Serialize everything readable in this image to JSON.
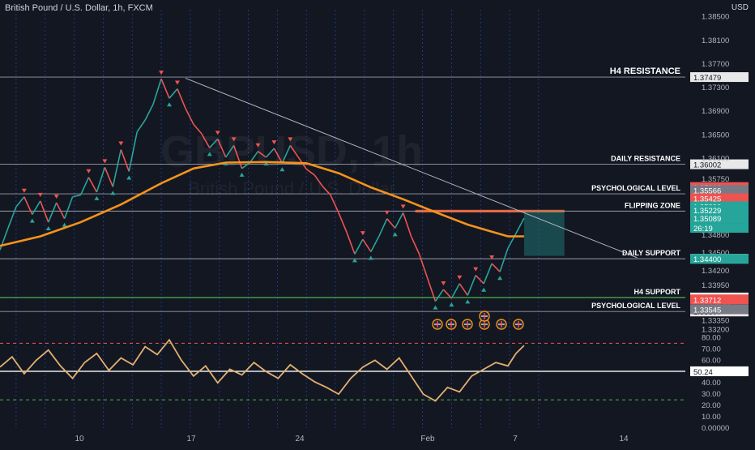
{
  "header": {
    "symbol_title": "British Pound / U.S. Dollar, 1h, FXCM",
    "currency": "USD"
  },
  "watermark": {
    "symbol": "GBPUSD, 1h",
    "name": "British Pound / U.S. Dollar"
  },
  "colors": {
    "background": "#131722",
    "bull": "#26a69a",
    "bear": "#ef5350",
    "ma": "#f7931a",
    "rsi": "#e2b070",
    "grid_vertical": "#2962ff",
    "level_line": "#b2b5be",
    "support_green": "#4caf50"
  },
  "chart_data": [
    {
      "type": "line",
      "title": "British Pound / U.S. Dollar, 1h, FXCM",
      "ylim": [
        1.3318,
        1.3862
      ],
      "yticks": [
        1.385,
        1.381,
        1.377,
        1.373,
        1.369,
        1.365,
        1.361,
        1.3575,
        1.3545,
        1.3515,
        1.348,
        1.345,
        1.342,
        1.3395,
        1.3365,
        1.3335,
        1.332
      ],
      "ytick_labels": [
        "1.38500",
        "1.38100",
        "1.37700",
        "1.37300",
        "1.36900",
        "1.36500",
        "1.36100",
        "1.35750",
        "1.35450",
        "1.35150",
        "1.34800",
        "1.34500",
        "1.34200",
        "1.33950",
        "1.33650",
        "1.33350",
        "1.33200"
      ],
      "xtick_labels": [
        "10",
        "17",
        "24",
        "Feb",
        "7",
        "14"
      ],
      "price_series": [
        {
          "t": 0,
          "v": 1.3455
        },
        {
          "t": 2,
          "v": 1.3492
        },
        {
          "t": 4,
          "v": 1.3528
        },
        {
          "t": 6,
          "v": 1.3545
        },
        {
          "t": 8,
          "v": 1.3515
        },
        {
          "t": 10,
          "v": 1.3538
        },
        {
          "t": 12,
          "v": 1.3502
        },
        {
          "t": 14,
          "v": 1.3535
        },
        {
          "t": 16,
          "v": 1.3508
        },
        {
          "t": 18,
          "v": 1.3545
        },
        {
          "t": 20,
          "v": 1.3548
        },
        {
          "t": 22,
          "v": 1.3578
        },
        {
          "t": 24,
          "v": 1.3553
        },
        {
          "t": 26,
          "v": 1.3595
        },
        {
          "t": 28,
          "v": 1.3562
        },
        {
          "t": 30,
          "v": 1.3625
        },
        {
          "t": 32,
          "v": 1.3588
        },
        {
          "t": 34,
          "v": 1.3655
        },
        {
          "t": 36,
          "v": 1.3675
        },
        {
          "t": 38,
          "v": 1.3702
        },
        {
          "t": 40,
          "v": 1.3745
        },
        {
          "t": 42,
          "v": 1.3712
        },
        {
          "t": 44,
          "v": 1.3728
        },
        {
          "t": 46,
          "v": 1.3695
        },
        {
          "t": 48,
          "v": 1.3668
        },
        {
          "t": 50,
          "v": 1.3652
        },
        {
          "t": 52,
          "v": 1.3628
        },
        {
          "t": 54,
          "v": 1.3643
        },
        {
          "t": 56,
          "v": 1.3612
        },
        {
          "t": 58,
          "v": 1.3632
        },
        {
          "t": 60,
          "v": 1.3593
        },
        {
          "t": 62,
          "v": 1.3603
        },
        {
          "t": 64,
          "v": 1.3622
        },
        {
          "t": 66,
          "v": 1.3612
        },
        {
          "t": 68,
          "v": 1.3627
        },
        {
          "t": 70,
          "v": 1.3602
        },
        {
          "t": 72,
          "v": 1.3632
        },
        {
          "t": 74,
          "v": 1.3612
        },
        {
          "t": 76,
          "v": 1.3592
        },
        {
          "t": 78,
          "v": 1.3582
        },
        {
          "t": 80,
          "v": 1.3563
        },
        {
          "t": 82,
          "v": 1.3548
        },
        {
          "t": 84,
          "v": 1.3518
        },
        {
          "t": 86,
          "v": 1.3485
        },
        {
          "t": 88,
          "v": 1.3448
        },
        {
          "t": 90,
          "v": 1.3473
        },
        {
          "t": 92,
          "v": 1.3452
        },
        {
          "t": 94,
          "v": 1.3478
        },
        {
          "t": 96,
          "v": 1.3508
        },
        {
          "t": 98,
          "v": 1.3492
        },
        {
          "t": 100,
          "v": 1.3518
        },
        {
          "t": 102,
          "v": 1.3478
        },
        {
          "t": 104,
          "v": 1.3448
        },
        {
          "t": 106,
          "v": 1.3408
        },
        {
          "t": 108,
          "v": 1.3368
        },
        {
          "t": 110,
          "v": 1.3388
        },
        {
          "t": 112,
          "v": 1.3373
        },
        {
          "t": 114,
          "v": 1.3398
        },
        {
          "t": 116,
          "v": 1.3378
        },
        {
          "t": 118,
          "v": 1.3412
        },
        {
          "t": 120,
          "v": 1.3398
        },
        {
          "t": 122,
          "v": 1.3432
        },
        {
          "t": 124,
          "v": 1.3418
        },
        {
          "t": 126,
          "v": 1.3458
        },
        {
          "t": 128,
          "v": 1.3483
        },
        {
          "t": 130,
          "v": 1.3509
        }
      ],
      "moving_average": [
        {
          "t": 0,
          "v": 1.3462
        },
        {
          "t": 10,
          "v": 1.3478
        },
        {
          "t": 20,
          "v": 1.3502
        },
        {
          "t": 30,
          "v": 1.3532
        },
        {
          "t": 40,
          "v": 1.3568
        },
        {
          "t": 48,
          "v": 1.3593
        },
        {
          "t": 56,
          "v": 1.3603
        },
        {
          "t": 66,
          "v": 1.3604
        },
        {
          "t": 76,
          "v": 1.3602
        },
        {
          "t": 84,
          "v": 1.3585
        },
        {
          "t": 92,
          "v": 1.3561
        },
        {
          "t": 100,
          "v": 1.3541
        },
        {
          "t": 108,
          "v": 1.3519
        },
        {
          "t": 116,
          "v": 1.3498
        },
        {
          "t": 122,
          "v": 1.3486
        },
        {
          "t": 126,
          "v": 1.3478
        },
        {
          "t": 130,
          "v": 1.3478
        }
      ],
      "trendline": {
        "from": {
          "t": 46,
          "v": 1.3746
        },
        "to": {
          "t": 158,
          "v": 1.3442
        }
      },
      "levels": [
        {
          "name": "H4 RESISTANCE",
          "price": 1.37479,
          "label": "1.37479",
          "style": "solid"
        },
        {
          "name": "DAILY RESISTANCE",
          "price": 1.36002,
          "label": "1.36002",
          "style": "solid"
        },
        {
          "name": "PSYCHOLOGICAL LEVEL",
          "price": 1.35501,
          "label": "1.35501",
          "style": "solid"
        },
        {
          "name": "FLIPPING ZONE",
          "price": 1.35208,
          "label": "1.35208",
          "style": "solid"
        },
        {
          "name": "DAILY SUPPORT",
          "price": 1.34401,
          "label": "1.34401",
          "style": "solid"
        },
        {
          "name": "H4 SUPPORT",
          "price": 1.33745,
          "label": "1.33745",
          "style": "green"
        },
        {
          "name": "PSYCHOLOGICAL LEVEL",
          "price": 1.33507,
          "label": "1.33507",
          "style": "solid"
        }
      ],
      "price_tags": [
        {
          "price": 1.35616,
          "label": "1.35616",
          "color": "#ef5350"
        },
        {
          "price": 1.35566,
          "label": "1.35566",
          "color": "#787b86"
        },
        {
          "price": 1.35425,
          "label": "1.35425",
          "color": "#ef5350"
        },
        {
          "price": 1.3529,
          "label": "1.35290",
          "color": "#26a69a"
        },
        {
          "price": 1.35229,
          "label": "1.35229",
          "color": "#26a69a"
        },
        {
          "price": 1.35089,
          "label": "1.35089",
          "color": "#26a69a"
        },
        {
          "price": 1.344,
          "label": "1.34400",
          "color": "#26a69a"
        },
        {
          "price": 1.33712,
          "label": "1.33712",
          "color": "#ef5350"
        },
        {
          "price": 1.33545,
          "label": "1.33545",
          "color": "#787b86"
        }
      ],
      "countdown": "26:19",
      "position_box": {
        "t_start": 130,
        "t_end": 140,
        "entry": 1.35208,
        "target": 1.3445
      }
    },
    {
      "type": "line",
      "title": "",
      "ylim": [
        0,
        86
      ],
      "yticks": [
        80,
        70,
        60,
        50,
        40,
        30,
        20,
        10,
        0
      ],
      "ytick_labels": [
        "80.00",
        "70.00",
        "60.00",
        "50.00",
        "40.00",
        "30.00",
        "20.00",
        "10.00",
        "0.00000"
      ],
      "overbought": 75,
      "oversold": 25,
      "midline": 50.24,
      "midline_label": "50.24",
      "series_description": "RSI",
      "values": [
        {
          "t": 0,
          "v": 54
        },
        {
          "t": 3,
          "v": 63
        },
        {
          "t": 6,
          "v": 48
        },
        {
          "t": 9,
          "v": 60
        },
        {
          "t": 12,
          "v": 69
        },
        {
          "t": 15,
          "v": 55
        },
        {
          "t": 18,
          "v": 44
        },
        {
          "t": 21,
          "v": 58
        },
        {
          "t": 24,
          "v": 66
        },
        {
          "t": 27,
          "v": 51
        },
        {
          "t": 30,
          "v": 62
        },
        {
          "t": 33,
          "v": 56
        },
        {
          "t": 36,
          "v": 72
        },
        {
          "t": 39,
          "v": 65
        },
        {
          "t": 42,
          "v": 78
        },
        {
          "t": 45,
          "v": 60
        },
        {
          "t": 48,
          "v": 46
        },
        {
          "t": 51,
          "v": 55
        },
        {
          "t": 54,
          "v": 40
        },
        {
          "t": 57,
          "v": 52
        },
        {
          "t": 60,
          "v": 47
        },
        {
          "t": 63,
          "v": 58
        },
        {
          "t": 66,
          "v": 50
        },
        {
          "t": 69,
          "v": 44
        },
        {
          "t": 72,
          "v": 56
        },
        {
          "t": 75,
          "v": 48
        },
        {
          "t": 78,
          "v": 41
        },
        {
          "t": 81,
          "v": 36
        },
        {
          "t": 84,
          "v": 30
        },
        {
          "t": 87,
          "v": 44
        },
        {
          "t": 90,
          "v": 54
        },
        {
          "t": 93,
          "v": 60
        },
        {
          "t": 96,
          "v": 52
        },
        {
          "t": 99,
          "v": 62
        },
        {
          "t": 102,
          "v": 46
        },
        {
          "t": 105,
          "v": 30
        },
        {
          "t": 108,
          "v": 24
        },
        {
          "t": 111,
          "v": 36
        },
        {
          "t": 114,
          "v": 32
        },
        {
          "t": 117,
          "v": 46
        },
        {
          "t": 120,
          "v": 52
        },
        {
          "t": 123,
          "v": 58
        },
        {
          "t": 126,
          "v": 55
        },
        {
          "t": 128,
          "v": 66
        },
        {
          "t": 130,
          "v": 73
        }
      ]
    }
  ]
}
